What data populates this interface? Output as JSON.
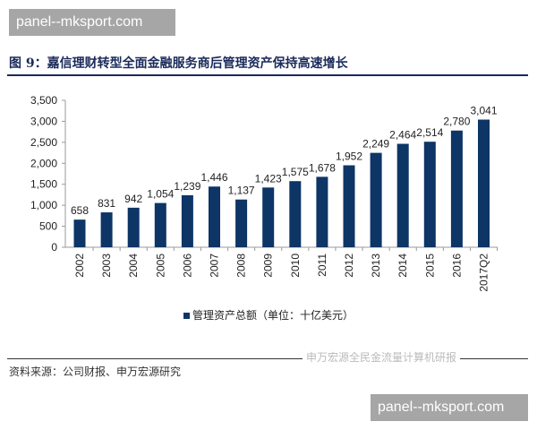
{
  "watermark_top": "panel--mksport.com",
  "watermark_bottom": "panel--mksport.com",
  "title": "图 9：嘉信理财转型全面金融服务商后管理资产保持高速增长",
  "source": "资料来源：公司财报、申万宏源研究",
  "wechat_watermark": "申万宏源全民金流量计算机研报",
  "chart_data": {
    "type": "bar",
    "categories": [
      "2002",
      "2003",
      "2004",
      "2005",
      "2006",
      "2007",
      "2008",
      "2009",
      "2010",
      "2011",
      "2012",
      "2013",
      "2014",
      "2015",
      "2016",
      "2017Q2"
    ],
    "series": [
      {
        "name": "管理资产总额（单位：十亿美元）",
        "values": [
          658,
          831,
          942,
          1054,
          1239,
          1446,
          1137,
          1423,
          1575,
          1678,
          1952,
          2249,
          2464,
          2514,
          2780,
          3041
        ]
      }
    ],
    "data_labels": [
      "658",
      "831",
      "942",
      "1,054",
      "1,239",
      "1,446",
      "1,137",
      "1,423",
      "1,575",
      "1,678",
      "1,952",
      "2,249",
      "2,464",
      "2,514",
      "2,780",
      "3,041"
    ],
    "yticks": [
      "0",
      "500",
      "1,000",
      "1,500",
      "2,000",
      "2,500",
      "3,000",
      "3,500"
    ],
    "ylim": [
      0,
      3500
    ],
    "grid": false,
    "legend": "bottom",
    "color": "#0d3566"
  }
}
